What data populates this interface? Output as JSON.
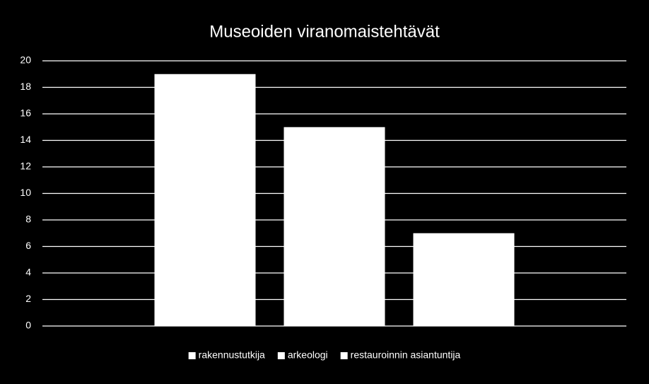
{
  "chart_data": {
    "type": "bar",
    "title": "Museoiden viranomaistehtävät",
    "categories": [
      null
    ],
    "series": [
      {
        "name": "rakennustutkija",
        "color": "#ffffff",
        "values": [
          19
        ]
      },
      {
        "name": "arkeologi",
        "color": "#ffffff",
        "values": [
          15
        ]
      },
      {
        "name": "restauroinnin asiantuntija",
        "color": "#ffffff",
        "values": [
          7
        ]
      }
    ],
    "ylim": [
      0,
      20
    ],
    "yticks": [
      0,
      2,
      4,
      6,
      8,
      10,
      12,
      14,
      16,
      18,
      20
    ],
    "grid": true,
    "legend": "bottom"
  }
}
